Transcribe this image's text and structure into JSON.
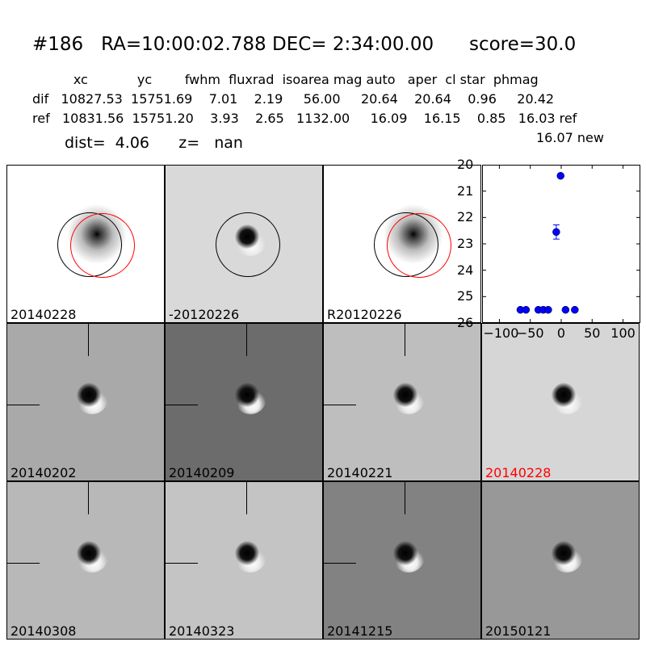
{
  "title": "#186   RA=10:00:02.788 DEC= 2:34:00.00      score=30.0",
  "table": {
    "header": "          xc            yc        fwhm  fluxrad  isoarea mag auto   aper  cl star  phmag",
    "dif": "dif   10827.53  15751.69    7.01    2.19     56.00     20.64    20.64    0.96     20.42",
    "ref": "ref   10831.56  15751.20    3.93    2.65   1132.00     16.09    16.15    0.85   16.03 ref",
    "new": "16.07 new"
  },
  "dist_line": "dist=  4.06      z=   nan",
  "panels": [
    {
      "label": "20140228",
      "bg": "#ffffff",
      "blob": "star",
      "circles": true
    },
    {
      "label": "-20120226",
      "bg": "#d9d9d9",
      "blob": "dipole",
      "circles": "single"
    },
    {
      "label": "R20120226",
      "bg": "#ffffff",
      "blob": "star",
      "circles": true
    },
    {
      "label": "20140202",
      "bg": "#a9a9a9",
      "blob": "dipole",
      "cross": true
    },
    {
      "label": "20140209",
      "bg": "#6c6c6c",
      "blob": "dipole",
      "cross": true
    },
    {
      "label": "20140221",
      "bg": "#bebebe",
      "blob": "dipole",
      "cross": true
    },
    {
      "label": "20140228",
      "bg": "#d6d6d6",
      "blob": "dipole",
      "highlight": "#ff0000"
    },
    {
      "label": "20140308",
      "bg": "#b8b8b8",
      "blob": "dipole",
      "cross": true
    },
    {
      "label": "20140323",
      "bg": "#c4c4c4",
      "blob": "dipole",
      "cross": true
    },
    {
      "label": "20141215",
      "bg": "#828282",
      "blob": "dipole",
      "cross": true
    },
    {
      "label": "20150121",
      "bg": "#989898",
      "blob": "dipole",
      "cross": false
    }
  ],
  "chart_data": {
    "type": "scatter",
    "xlim": [
      -128,
      128
    ],
    "ylim": [
      26,
      20
    ],
    "xticks": [
      "-100",
      "-50",
      "0",
      "50",
      "100"
    ],
    "yticks": [
      "20",
      "21",
      "22",
      "23",
      "24",
      "25",
      "26"
    ],
    "color": "#0000ff",
    "points": [
      {
        "x": -66,
        "y": 25.5
      },
      {
        "x": -57,
        "y": 25.5
      },
      {
        "x": -37,
        "y": 25.5
      },
      {
        "x": -29,
        "y": 25.5
      },
      {
        "x": -21,
        "y": 25.5
      },
      {
        "x": -8,
        "y": 22.55,
        "err": 0.27
      },
      {
        "x": -1,
        "y": 20.42
      },
      {
        "x": 7,
        "y": 25.5
      },
      {
        "x": 22,
        "y": 25.5
      }
    ]
  }
}
